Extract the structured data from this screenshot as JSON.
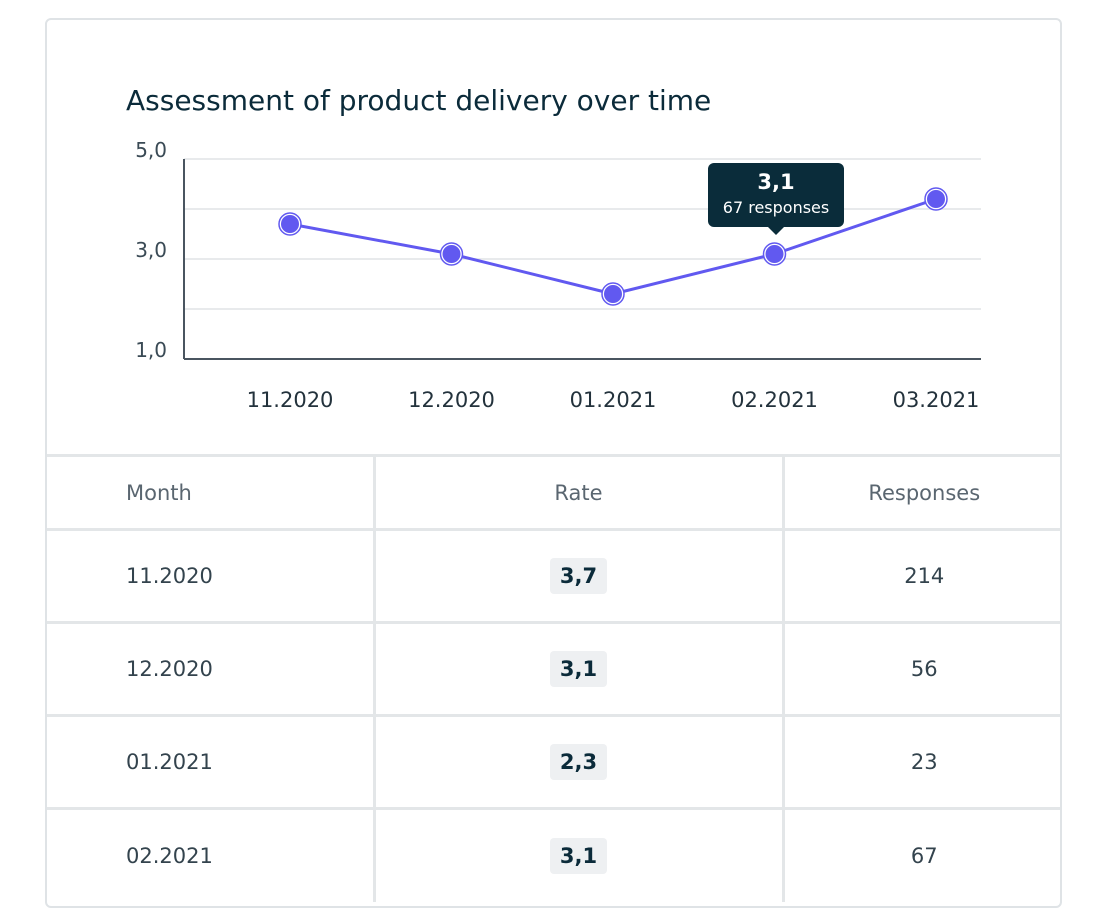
{
  "card": {
    "title": "Assessment of product delivery over time"
  },
  "chart_data": {
    "type": "line",
    "title": "Assessment of product delivery over time",
    "xlabel": "",
    "ylabel": "",
    "categories": [
      "11.2020",
      "12.2020",
      "01.2021",
      "02.2021",
      "03.2021"
    ],
    "series": [
      {
        "values": [
          3.7,
          3.1,
          2.3,
          3.1,
          4.2
        ]
      }
    ],
    "ylim": [
      1,
      5
    ],
    "y_ticks": [
      {
        "value": 5,
        "label": "5,0"
      },
      {
        "value": 3,
        "label": "3,0"
      },
      {
        "value": 1,
        "label": "1,0"
      }
    ],
    "y_gridlines": [
      5,
      4,
      3,
      2
    ],
    "grid": true,
    "line_color": "#6159f0",
    "tooltip": {
      "category": "02.2021",
      "value_label": "3,1",
      "sub_label": "67 responses"
    }
  },
  "table": {
    "headers": {
      "month": "Month",
      "rate": "Rate",
      "responses": "Responses"
    },
    "rows": [
      {
        "month": "11.2020",
        "rate": "3,7",
        "responses": "214"
      },
      {
        "month": "12.2020",
        "rate": "3,1",
        "responses": "56"
      },
      {
        "month": "01.2021",
        "rate": "2,3",
        "responses": "23"
      },
      {
        "month": "02.2021",
        "rate": "3,1",
        "responses": "67"
      }
    ]
  }
}
